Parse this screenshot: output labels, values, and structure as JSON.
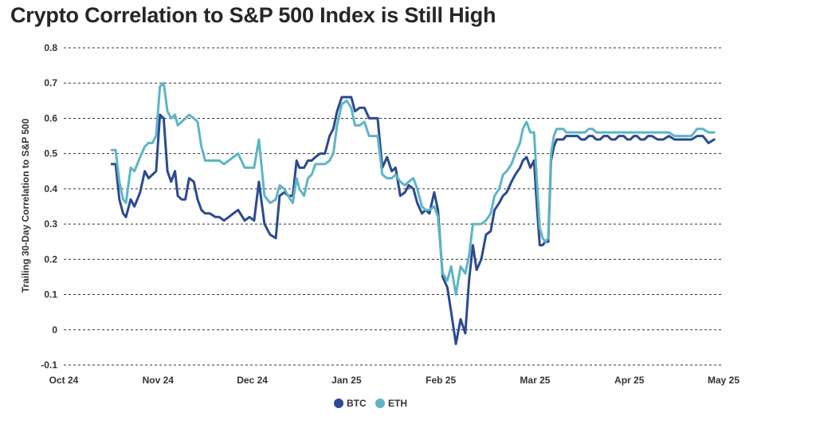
{
  "chart_data": {
    "type": "line",
    "title": "Crypto Correlation to S&P 500 Index is Still High",
    "xlabel": "",
    "ylabel": "Trailing 30-Day Correlation to S&P 500",
    "ylim": [
      -0.1,
      0.8
    ],
    "yticks": [
      -0.1,
      0,
      0.1,
      0.2,
      0.3,
      0.4,
      0.5,
      0.6,
      0.7,
      0.8
    ],
    "ytick_labels": [
      "-0.1",
      "0",
      "0.1",
      "0.2",
      "0.3",
      "0.4",
      "0.5",
      "0.6",
      "0.7",
      "0.8"
    ],
    "xlim": [
      0,
      7
    ],
    "xticks": [
      0,
      1,
      2,
      3,
      4,
      5,
      6,
      7
    ],
    "xtick_labels": [
      "Oct 24",
      "Nov 24",
      "Dec 24",
      "Jan 25",
      "Feb 25",
      "Mar 25",
      "Apr 25",
      "May 25"
    ],
    "grid": true,
    "legend_position": "bottom-center",
    "series": [
      {
        "name": "BTC",
        "color": "#2B4A8F",
        "x": [
          0.51,
          0.55,
          0.59,
          0.63,
          0.66,
          0.71,
          0.75,
          0.78,
          0.81,
          0.86,
          0.9,
          0.94,
          0.98,
          1.02,
          1.06,
          1.1,
          1.14,
          1.18,
          1.21,
          1.25,
          1.29,
          1.33,
          1.38,
          1.42,
          1.46,
          1.5,
          1.55,
          1.61,
          1.65,
          1.7,
          1.75,
          1.8,
          1.85,
          1.92,
          1.97,
          2.02,
          2.07,
          2.13,
          2.19,
          2.25,
          2.29,
          2.34,
          2.38,
          2.43,
          2.47,
          2.5,
          2.55,
          2.59,
          2.63,
          2.67,
          2.72,
          2.77,
          2.82,
          2.86,
          2.9,
          2.95,
          3.0,
          3.05,
          3.09,
          3.14,
          3.19,
          3.24,
          3.29,
          3.33,
          3.38,
          3.43,
          3.48,
          3.52,
          3.57,
          3.62,
          3.66,
          3.71,
          3.75,
          3.8,
          3.84,
          3.88,
          3.93,
          3.97,
          4.02,
          4.07,
          4.11,
          4.16,
          4.21,
          4.26,
          4.3,
          4.34,
          4.38,
          4.43,
          4.48,
          4.53,
          4.57,
          4.62,
          4.66,
          4.7,
          4.75,
          4.79,
          4.84,
          4.87,
          4.91,
          4.95,
          4.99,
          5.02,
          5.05,
          5.08,
          5.11,
          5.14,
          5.17,
          5.2,
          5.23,
          5.26,
          5.3,
          5.33,
          5.37,
          5.41,
          5.45,
          5.49,
          5.53,
          5.57,
          5.61,
          5.65,
          5.69,
          5.73,
          5.77,
          5.81,
          5.85,
          5.89,
          5.94,
          5.98,
          6.01,
          6.05,
          6.08,
          6.12,
          6.16,
          6.2,
          6.24,
          6.3,
          6.36,
          6.42,
          6.48,
          6.54,
          6.6,
          6.66,
          6.72,
          6.78,
          6.84,
          6.9
        ],
        "values": [
          0.47,
          0.47,
          0.37,
          0.33,
          0.32,
          0.37,
          0.35,
          0.37,
          0.39,
          0.45,
          0.43,
          0.44,
          0.45,
          0.61,
          0.6,
          0.45,
          0.42,
          0.45,
          0.38,
          0.37,
          0.37,
          0.43,
          0.42,
          0.37,
          0.34,
          0.33,
          0.33,
          0.32,
          0.32,
          0.31,
          0.32,
          0.33,
          0.34,
          0.31,
          0.32,
          0.31,
          0.42,
          0.3,
          0.27,
          0.26,
          0.38,
          0.39,
          0.38,
          0.38,
          0.48,
          0.46,
          0.46,
          0.48,
          0.48,
          0.49,
          0.5,
          0.5,
          0.55,
          0.57,
          0.62,
          0.66,
          0.66,
          0.66,
          0.62,
          0.63,
          0.63,
          0.6,
          0.6,
          0.6,
          0.46,
          0.49,
          0.45,
          0.46,
          0.38,
          0.39,
          0.41,
          0.4,
          0.36,
          0.33,
          0.34,
          0.33,
          0.39,
          0.34,
          0.15,
          0.12,
          0.05,
          -0.04,
          0.03,
          -0.01,
          0.14,
          0.24,
          0.17,
          0.2,
          0.27,
          0.28,
          0.34,
          0.36,
          0.38,
          0.39,
          0.42,
          0.44,
          0.46,
          0.48,
          0.49,
          0.46,
          0.48,
          0.35,
          0.24,
          0.24,
          0.25,
          0.25,
          0.48,
          0.52,
          0.54,
          0.54,
          0.54,
          0.55,
          0.55,
          0.55,
          0.55,
          0.54,
          0.54,
          0.55,
          0.55,
          0.54,
          0.54,
          0.55,
          0.55,
          0.54,
          0.54,
          0.55,
          0.55,
          0.54,
          0.54,
          0.55,
          0.55,
          0.54,
          0.54,
          0.55,
          0.55,
          0.54,
          0.54,
          0.55,
          0.54,
          0.54,
          0.54,
          0.54,
          0.55,
          0.55,
          0.53,
          0.54
        ]
      },
      {
        "name": "ETH",
        "color": "#5DB5C4",
        "x": [
          0.51,
          0.55,
          0.59,
          0.63,
          0.66,
          0.71,
          0.75,
          0.78,
          0.81,
          0.86,
          0.9,
          0.94,
          0.98,
          1.02,
          1.06,
          1.1,
          1.14,
          1.18,
          1.21,
          1.25,
          1.29,
          1.33,
          1.38,
          1.42,
          1.46,
          1.5,
          1.55,
          1.61,
          1.65,
          1.7,
          1.75,
          1.8,
          1.85,
          1.92,
          1.97,
          2.02,
          2.07,
          2.13,
          2.19,
          2.25,
          2.29,
          2.34,
          2.38,
          2.43,
          2.47,
          2.5,
          2.55,
          2.59,
          2.63,
          2.67,
          2.72,
          2.77,
          2.82,
          2.86,
          2.9,
          2.95,
          3.0,
          3.05,
          3.09,
          3.14,
          3.19,
          3.24,
          3.29,
          3.33,
          3.38,
          3.43,
          3.48,
          3.52,
          3.57,
          3.62,
          3.66,
          3.71,
          3.75,
          3.8,
          3.84,
          3.88,
          3.93,
          3.97,
          4.02,
          4.07,
          4.11,
          4.16,
          4.21,
          4.26,
          4.3,
          4.34,
          4.38,
          4.43,
          4.48,
          4.53,
          4.57,
          4.62,
          4.66,
          4.7,
          4.75,
          4.79,
          4.84,
          4.87,
          4.91,
          4.95,
          4.99,
          5.02,
          5.05,
          5.08,
          5.11,
          5.14,
          5.17,
          5.2,
          5.23,
          5.26,
          5.3,
          5.33,
          5.37,
          5.41,
          5.45,
          5.49,
          5.53,
          5.57,
          5.61,
          5.65,
          5.69,
          5.73,
          5.77,
          5.81,
          5.85,
          5.89,
          5.94,
          5.98,
          6.01,
          6.05,
          6.08,
          6.12,
          6.16,
          6.2,
          6.24,
          6.3,
          6.36,
          6.42,
          6.48,
          6.54,
          6.6,
          6.66,
          6.72,
          6.78,
          6.84,
          6.9
        ],
        "values": [
          0.51,
          0.51,
          0.42,
          0.37,
          0.36,
          0.46,
          0.45,
          0.47,
          0.49,
          0.52,
          0.53,
          0.53,
          0.55,
          0.69,
          0.7,
          0.62,
          0.6,
          0.61,
          0.58,
          0.59,
          0.6,
          0.61,
          0.6,
          0.59,
          0.52,
          0.48,
          0.48,
          0.48,
          0.48,
          0.47,
          0.48,
          0.49,
          0.5,
          0.46,
          0.46,
          0.46,
          0.54,
          0.38,
          0.36,
          0.37,
          0.41,
          0.4,
          0.38,
          0.36,
          0.43,
          0.4,
          0.38,
          0.43,
          0.44,
          0.47,
          0.47,
          0.47,
          0.48,
          0.5,
          0.58,
          0.64,
          0.65,
          0.63,
          0.58,
          0.58,
          0.59,
          0.55,
          0.55,
          0.55,
          0.44,
          0.43,
          0.43,
          0.44,
          0.42,
          0.41,
          0.42,
          0.43,
          0.4,
          0.35,
          0.34,
          0.34,
          0.35,
          0.32,
          0.16,
          0.14,
          0.18,
          0.1,
          0.18,
          0.16,
          0.21,
          0.3,
          0.3,
          0.3,
          0.31,
          0.33,
          0.38,
          0.4,
          0.44,
          0.45,
          0.47,
          0.5,
          0.53,
          0.57,
          0.59,
          0.56,
          0.56,
          0.42,
          0.29,
          0.26,
          0.25,
          0.26,
          0.5,
          0.55,
          0.57,
          0.57,
          0.57,
          0.56,
          0.56,
          0.56,
          0.56,
          0.56,
          0.56,
          0.57,
          0.57,
          0.56,
          0.56,
          0.56,
          0.56,
          0.56,
          0.56,
          0.56,
          0.56,
          0.56,
          0.56,
          0.56,
          0.56,
          0.56,
          0.56,
          0.56,
          0.56,
          0.56,
          0.56,
          0.56,
          0.55,
          0.55,
          0.55,
          0.55,
          0.57,
          0.57,
          0.56,
          0.56
        ]
      }
    ]
  }
}
